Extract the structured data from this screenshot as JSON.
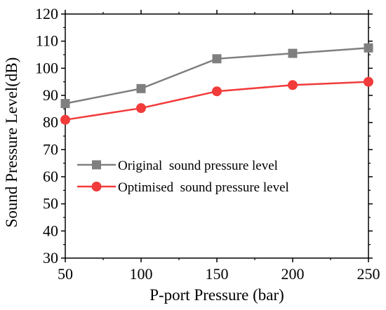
{
  "chart_data": {
    "type": "line",
    "title": "",
    "xlabel": "P-port Pressure (bar)",
    "ylabel": "Sound Pressure Level(dB)",
    "xlim": [
      50,
      250
    ],
    "ylim": [
      30,
      120
    ],
    "xticks": [
      50,
      100,
      150,
      200,
      250
    ],
    "yticks": [
      30,
      40,
      50,
      60,
      70,
      80,
      90,
      100,
      110,
      120
    ],
    "grid": false,
    "legend_position": "center-left",
    "x": [
      50,
      100,
      150,
      200,
      250
    ],
    "series": [
      {
        "name": "Original  sound pressure level",
        "values": [
          87,
          92.5,
          103.5,
          105.5,
          107.5
        ],
        "color": "#7f7f7f",
        "marker": "square"
      },
      {
        "name": "Optimised  sound pressure level",
        "values": [
          81,
          85.3,
          91.5,
          93.8,
          95
        ],
        "color": "#f23b3b",
        "marker": "circle"
      }
    ]
  }
}
